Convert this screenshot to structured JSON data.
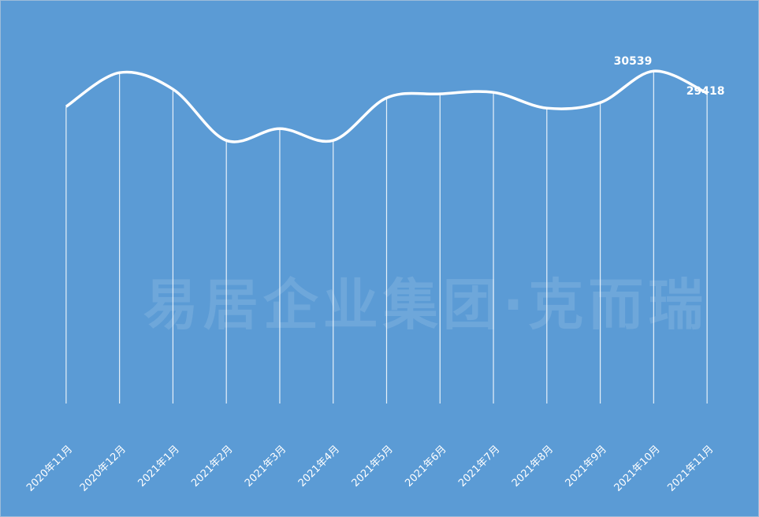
{
  "chart_data": {
    "type": "line",
    "watermark": "易居企业集团·克而瑞",
    "categories": [
      "2020年11月",
      "2020年12月",
      "2021年1月",
      "2021年2月",
      "2021年3月",
      "2021年4月",
      "2021年5月",
      "2021年6月",
      "2021年7月",
      "2021年8月",
      "2021年9月",
      "2021年10月",
      "2021年11月"
    ],
    "series": [
      {
        "color": "#ffffff",
        "values": [
          28737,
          30459,
          29618,
          27015,
          27616,
          27015,
          29178,
          29378,
          29458,
          28657,
          28937,
          30539,
          29418
        ],
        "value_labels": [
          null,
          null,
          null,
          null,
          null,
          null,
          null,
          null,
          null,
          null,
          null,
          "30539",
          "29418"
        ]
      }
    ],
    "ylim": [
      13650,
      34150
    ],
    "drop_lines": true,
    "smooth": true,
    "background": "#5b9bd5"
  }
}
